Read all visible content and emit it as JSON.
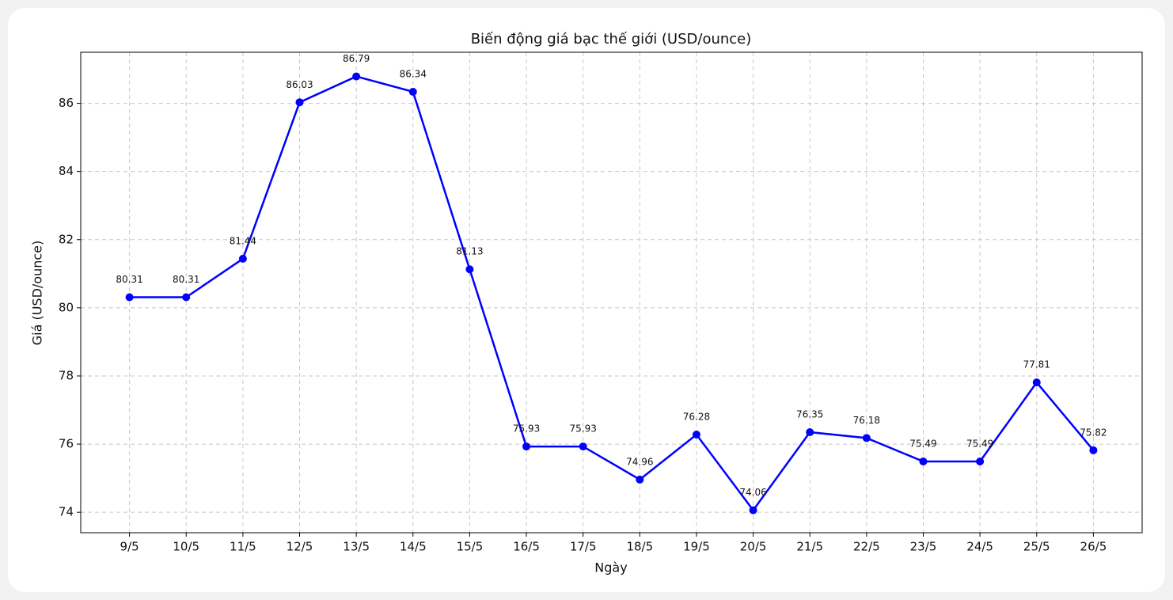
{
  "chart_data": {
    "type": "line",
    "title": "Biến động giá bạc thế giới (USD/ounce)",
    "x_label": "Ngày",
    "y_label": "Giá (USD/ounce)",
    "categories": [
      "9/5",
      "10/5",
      "11/5",
      "12/5",
      "13/5",
      "14/5",
      "15/5",
      "16/5",
      "17/5",
      "18/5",
      "19/5",
      "20/5",
      "21/5",
      "22/5",
      "23/5",
      "24/5",
      "25/5",
      "26/5"
    ],
    "series": [
      {
        "name": "Giá",
        "color": "#0000ff",
        "values": [
          80.31,
          80.31,
          81.44,
          86.03,
          86.79,
          86.34,
          81.13,
          75.93,
          75.93,
          74.96,
          76.28,
          74.06,
          76.35,
          76.18,
          75.49,
          75.49,
          77.81,
          75.82
        ]
      }
    ],
    "ylim": [
      73.4,
      87.5
    ],
    "yticks": [
      74,
      76,
      78,
      80,
      82,
      84,
      86
    ],
    "grid": true
  }
}
